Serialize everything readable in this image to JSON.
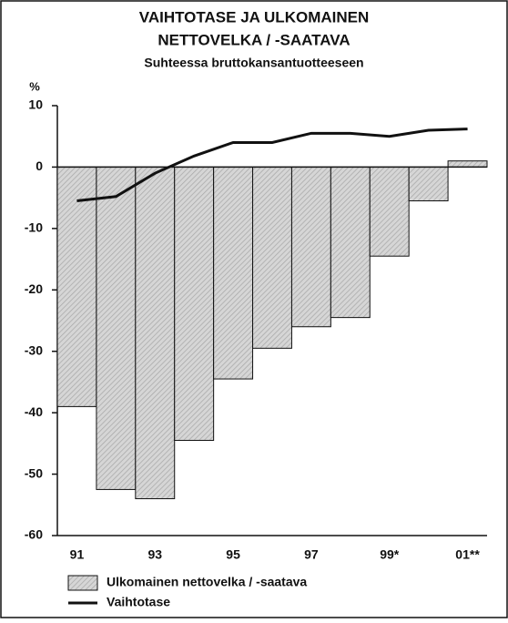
{
  "chart_data": {
    "type": "bar",
    "title": [
      "VAIHTOTASE JA ULKOMAINEN",
      "NETTOVELKA / -SAATAVA"
    ],
    "subtitle": "Suhteessa bruttokansantuotteeseen",
    "ylabel": "%",
    "categories": [
      "91",
      null,
      "93",
      null,
      "95",
      null,
      "97",
      null,
      "99*",
      null,
      "01**"
    ],
    "series": [
      {
        "name": "Ulkomainen nettovelka / -saatava",
        "type": "bar",
        "color": "#c8c8c8",
        "values": [
          -39,
          -52.5,
          -54,
          -44.5,
          -34.5,
          -29.5,
          -26,
          -24.5,
          -14.5,
          -5.5,
          1
        ]
      },
      {
        "name": "Vaihtotase",
        "type": "line",
        "color": "#111111",
        "values": [
          -5.5,
          -4.8,
          -1,
          1.8,
          4,
          4,
          5.5,
          5.5,
          5,
          6,
          6.2
        ]
      }
    ],
    "ylim": [
      -60,
      10
    ],
    "yticks": [
      10,
      0,
      -10,
      -20,
      -30,
      -40,
      -50,
      -60
    ],
    "grid": false,
    "legend": "bottom"
  }
}
